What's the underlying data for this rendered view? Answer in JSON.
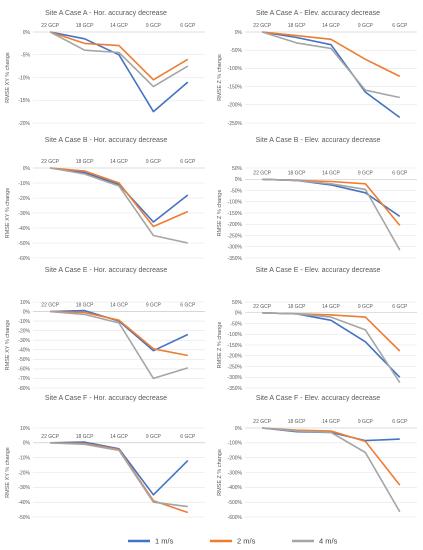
{
  "colors": {
    "1 m/s": "#4472c4",
    "2 m/s": "#ed7d31",
    "4 m/s": "#a5a5a5"
  },
  "legend": [
    "1 m/s",
    "2 m/s",
    "4 m/s"
  ],
  "chart_data": [
    {
      "type": "line",
      "title": "Site A Case A - Hor. accuracy decrease",
      "ylabel": "RMSE XY % change",
      "categories": [
        "22 GCP",
        "18 GCP",
        "14 GCP",
        "9 GCP",
        "6 GCP"
      ],
      "yticks": [
        0,
        -5,
        -10,
        -15,
        -20
      ],
      "ylim": [
        -20,
        0
      ],
      "series": [
        {
          "name": "1 m/s",
          "values": [
            0,
            -1.5,
            -5,
            -17.5,
            -11
          ]
        },
        {
          "name": "2 m/s",
          "values": [
            0,
            -2.5,
            -3,
            -10.5,
            -6
          ]
        },
        {
          "name": "4 m/s",
          "values": [
            0,
            -4,
            -4.5,
            -12,
            -7.5
          ]
        }
      ]
    },
    {
      "type": "line",
      "title": "Site A Case A - Elev. accuracy decrease",
      "ylabel": "RMSE Z % change",
      "categories": [
        "22 GCP",
        "18 GCP",
        "14 GCP",
        "9 GCP",
        "6 GCP"
      ],
      "yticks": [
        0,
        -50,
        -100,
        -150,
        -200,
        -250
      ],
      "ylim": [
        -250,
        0
      ],
      "series": [
        {
          "name": "1 m/s",
          "values": [
            0,
            -15,
            -35,
            -165,
            -235
          ]
        },
        {
          "name": "2 m/s",
          "values": [
            0,
            -10,
            -20,
            -75,
            -122
          ]
        },
        {
          "name": "4 m/s",
          "values": [
            0,
            -30,
            -45,
            -160,
            -180
          ]
        }
      ]
    },
    {
      "type": "line",
      "title": "Site A Case B - Hor. accuracy decrease",
      "ylabel": "RMSE XY % change",
      "categories": [
        "22 GCP",
        "18 GCP",
        "14 GCP",
        "9 GCP",
        "6 GCP"
      ],
      "yticks": [
        0,
        -10,
        -20,
        -30,
        -40,
        -50,
        -60
      ],
      "ylim": [
        -60,
        0
      ],
      "series": [
        {
          "name": "1 m/s",
          "values": [
            0,
            -3,
            -11,
            -36,
            -18
          ]
        },
        {
          "name": "2 m/s",
          "values": [
            0,
            -2,
            -10,
            -39,
            -29
          ]
        },
        {
          "name": "4 m/s",
          "values": [
            0,
            -4,
            -12,
            -45,
            -50
          ]
        }
      ]
    },
    {
      "type": "line",
      "title": "Site A Case B - Elev. accuracy decrease",
      "ylabel": "RMSE Z % change",
      "categories": [
        "22 GCP",
        "18 GCP",
        "14 GCP",
        "9 GCP",
        "6 GCP"
      ],
      "yticks": [
        50,
        0,
        -50,
        -100,
        -150,
        -200,
        -250,
        -300,
        -350
      ],
      "ylim": [
        -350,
        50
      ],
      "series": [
        {
          "name": "1 m/s",
          "values": [
            0,
            -5,
            -25,
            -60,
            -165
          ]
        },
        {
          "name": "2 m/s",
          "values": [
            0,
            -5,
            -10,
            -20,
            -205
          ]
        },
        {
          "name": "4 m/s",
          "values": [
            0,
            -5,
            -20,
            -45,
            -315
          ]
        }
      ]
    },
    {
      "type": "line",
      "title": "Site A Case E - Hor. accuracy decrease",
      "ylabel": "RMSE XY % change",
      "categories": [
        "22 GCP",
        "18 GCP",
        "14 GCP",
        "9 GCP",
        "6 GCP"
      ],
      "yticks": [
        10,
        0,
        -10,
        -20,
        -30,
        -40,
        -50,
        -60,
        -70,
        -80
      ],
      "ylim": [
        -80,
        10
      ],
      "series": [
        {
          "name": "1 m/s",
          "values": [
            0,
            1,
            -10,
            -41,
            -24
          ]
        },
        {
          "name": "2 m/s",
          "values": [
            0,
            -1,
            -9,
            -39,
            -46
          ]
        },
        {
          "name": "4 m/s",
          "values": [
            0,
            -3,
            -12,
            -70,
            -59
          ]
        }
      ]
    },
    {
      "type": "line",
      "title": "Site A Case E - Elev. accuracy decrease",
      "ylabel": "RMSE Z % change",
      "categories": [
        "22 GCP",
        "18 GCP",
        "14 GCP",
        "9 GCP",
        "6 GCP"
      ],
      "yticks": [
        50,
        0,
        -50,
        -100,
        -150,
        -200,
        -250,
        -300,
        -350
      ],
      "ylim": [
        -350,
        50
      ],
      "series": [
        {
          "name": "1 m/s",
          "values": [
            0,
            -5,
            -35,
            -135,
            -300
          ]
        },
        {
          "name": "2 m/s",
          "values": [
            0,
            -5,
            -10,
            -20,
            -178
          ]
        },
        {
          "name": "4 m/s",
          "values": [
            0,
            -5,
            -20,
            -80,
            -325
          ]
        }
      ]
    },
    {
      "type": "line",
      "title": "Site A Case F - Hor. accuracy decrease",
      "ylabel": "RMSE XY % change",
      "categories": [
        "22 GCP",
        "18 GCP",
        "14 GCP",
        "9 GCP",
        "6 GCP"
      ],
      "yticks": [
        10,
        0,
        -10,
        -20,
        -30,
        -40,
        -50
      ],
      "ylim": [
        -50,
        10
      ],
      "series": [
        {
          "name": "1 m/s",
          "values": [
            0,
            0.5,
            -4,
            -35,
            -12
          ]
        },
        {
          "name": "2 m/s",
          "values": [
            0,
            -0.5,
            -4.5,
            -39,
            -47
          ]
        },
        {
          "name": "4 m/s",
          "values": [
            0,
            -1,
            -5,
            -40,
            -43
          ]
        }
      ]
    },
    {
      "type": "line",
      "title": "Site A Case F - Elev. accuracy decrease",
      "ylabel": "RMSE Z % change",
      "categories": [
        "22 GCP",
        "18 GCP",
        "14 GCP",
        "9 GCP",
        "6 GCP"
      ],
      "yticks": [
        0,
        -100,
        -200,
        -300,
        -400,
        -500,
        -600
      ],
      "ylim": [
        -600,
        0
      ],
      "series": [
        {
          "name": "1 m/s",
          "values": [
            0,
            -25,
            -30,
            -85,
            -75
          ]
        },
        {
          "name": "2 m/s",
          "values": [
            0,
            -15,
            -20,
            -90,
            -385
          ]
        },
        {
          "name": "4 m/s",
          "values": [
            0,
            -20,
            -30,
            -165,
            -565
          ]
        }
      ]
    }
  ]
}
